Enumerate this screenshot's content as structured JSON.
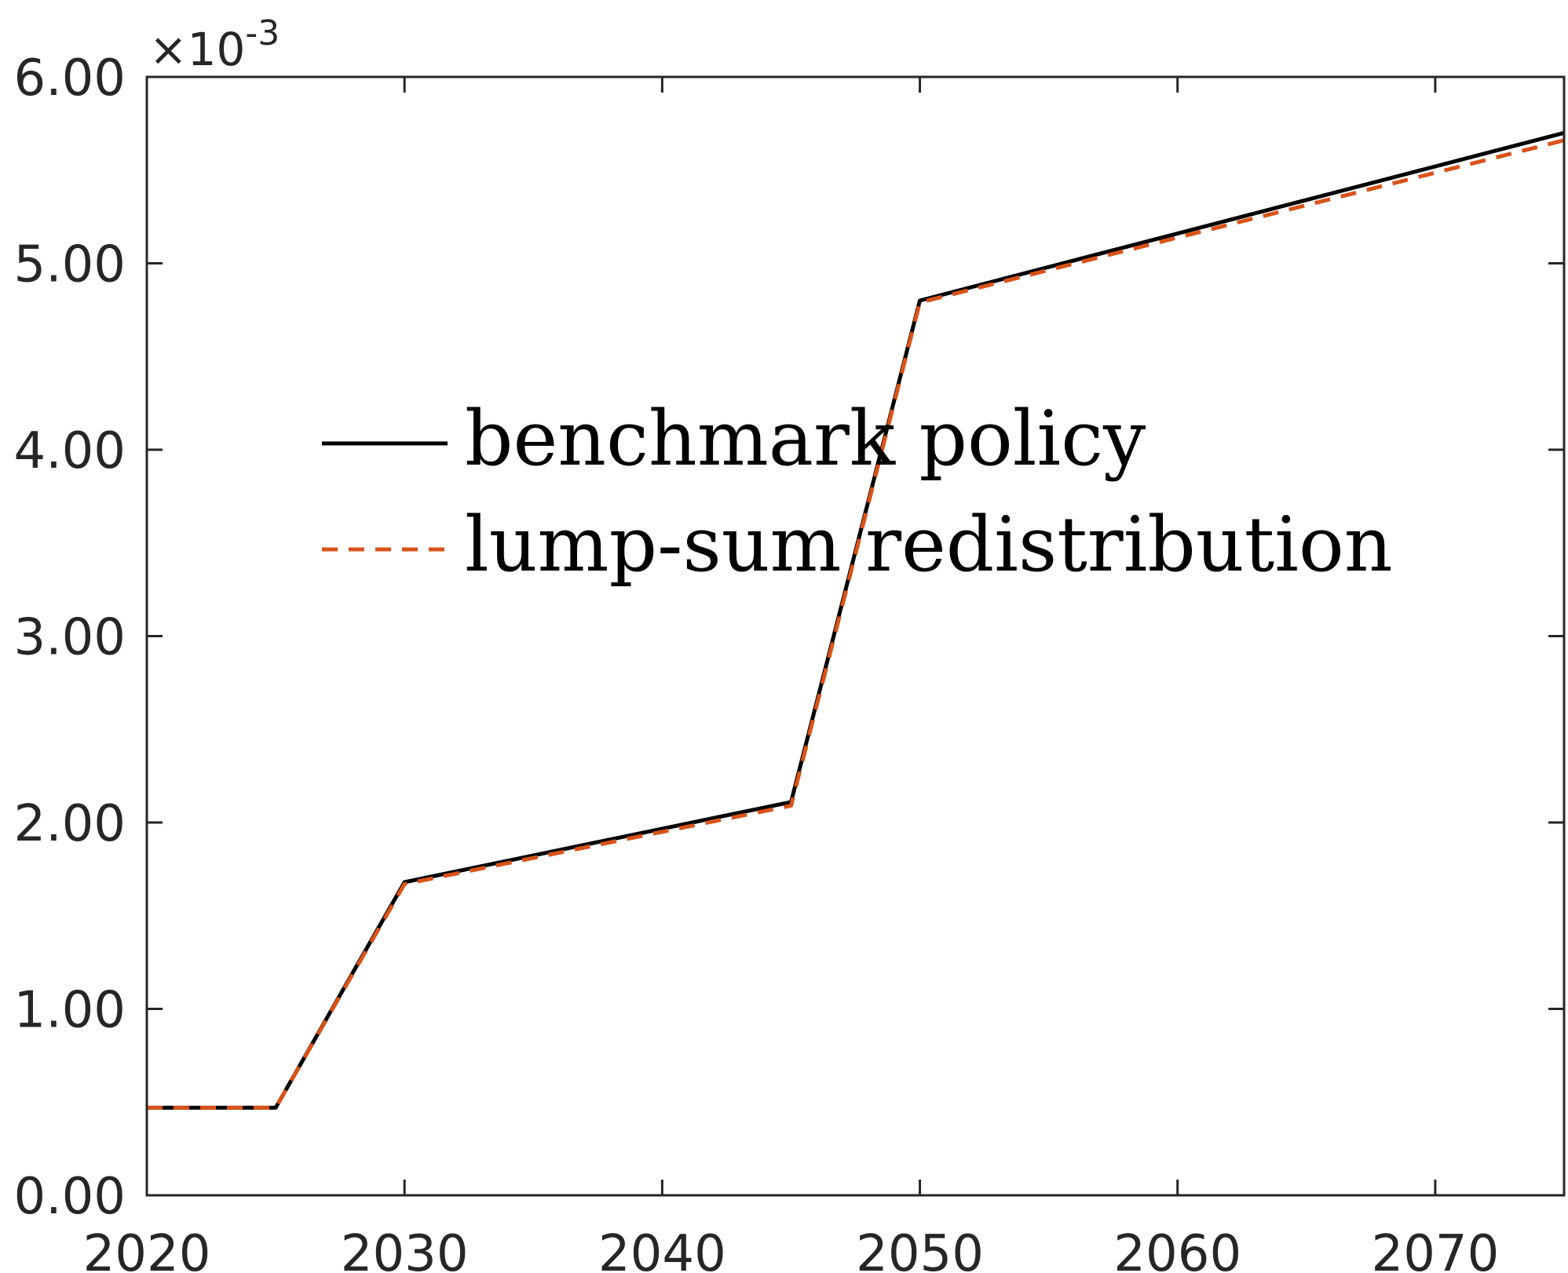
{
  "chart_data": {
    "type": "line",
    "title": "",
    "xlabel": "",
    "ylabel": "",
    "xlim": [
      2020,
      2075
    ],
    "ylim": [
      0,
      0.006
    ],
    "y_multiplier_label": {
      "base": "×10",
      "exponent": "-3"
    },
    "x_ticks": [
      {
        "value": 2020,
        "label": "2020"
      },
      {
        "value": 2030,
        "label": "2030"
      },
      {
        "value": 2040,
        "label": "2040"
      },
      {
        "value": 2050,
        "label": "2050"
      },
      {
        "value": 2060,
        "label": "2060"
      },
      {
        "value": 2070,
        "label": "2070"
      }
    ],
    "y_ticks": [
      {
        "value": 0,
        "label": "0.00"
      },
      {
        "value": 0.001,
        "label": "1.00"
      },
      {
        "value": 0.002,
        "label": "2.00"
      },
      {
        "value": 0.003,
        "label": "3.00"
      },
      {
        "value": 0.004,
        "label": "4.00"
      },
      {
        "value": 0.005,
        "label": "5.00"
      },
      {
        "value": 0.006,
        "label": "6.00"
      }
    ],
    "grid": false,
    "legend_position": "center-left",
    "series": [
      {
        "name": "benchmark policy",
        "color": "#000000",
        "style": "solid",
        "x": [
          2020,
          2025,
          2030,
          2045,
          2050,
          2075
        ],
        "y": [
          0.00047,
          0.00047,
          0.00168,
          0.00211,
          0.0048,
          0.0057
        ]
      },
      {
        "name": "lump-sum redistribution",
        "color": "#D95319",
        "style": "dashed",
        "x": [
          2020,
          2025,
          2030,
          2045,
          2050,
          2075
        ],
        "y": [
          0.00047,
          0.00047,
          0.00167,
          0.00209,
          0.00479,
          0.00566
        ]
      }
    ]
  }
}
